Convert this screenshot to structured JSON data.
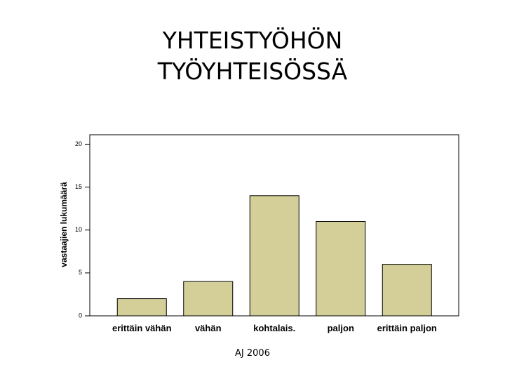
{
  "chart_data": {
    "type": "bar",
    "title": "YHTEISTYÖHÖN TYÖYHTEISÖSSÄ",
    "y_label": "vastaajien lukumäärä",
    "categories": [
      "erittäin vähän",
      "vähän",
      "kohtalais.",
      "paljon",
      "erittäin paljon"
    ],
    "values": [
      2,
      4,
      14,
      11,
      6
    ],
    "color": "#d4cf98",
    "ylim": [
      0,
      21.1
    ],
    "yticks": [
      0,
      5,
      10,
      15,
      20
    ],
    "grid": false,
    "footer": "AJ 2006"
  }
}
